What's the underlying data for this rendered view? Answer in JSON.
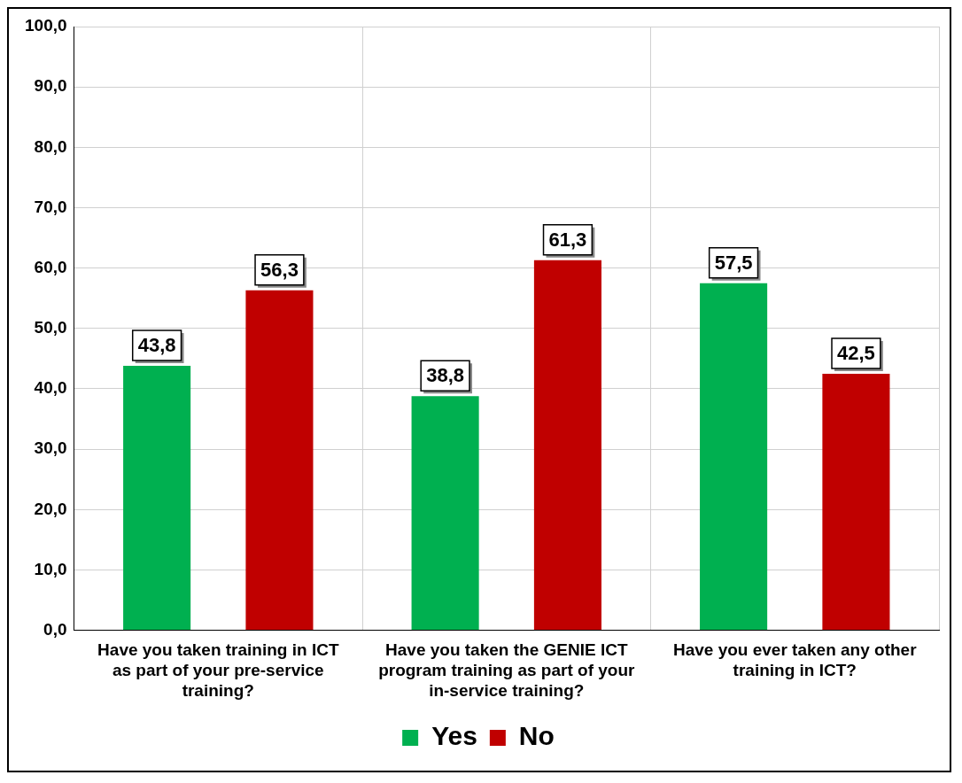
{
  "chart_data": {
    "type": "bar",
    "categories": [
      "Have you taken training in ICT as part of your pre-service training?",
      "Have you taken the GENIE ICT program training as part of your in-service training?",
      "Have you ever taken any other training in ICT?"
    ],
    "series": [
      {
        "name": "Yes",
        "color": "#00b050",
        "values": [
          43.8,
          38.8,
          57.5
        ],
        "value_labels": [
          "43,8",
          "38,8",
          "57,5"
        ]
      },
      {
        "name": "No",
        "color": "#c00000",
        "values": [
          56.3,
          61.3,
          42.5
        ],
        "value_labels": [
          "56,3",
          "61,3",
          "42,5"
        ]
      }
    ],
    "ylim": [
      0,
      100
    ],
    "yticks": [
      {
        "value": 0,
        "label": "0,0"
      },
      {
        "value": 10,
        "label": "10,0"
      },
      {
        "value": 20,
        "label": "20,0"
      },
      {
        "value": 30,
        "label": "30,0"
      },
      {
        "value": 40,
        "label": "40,0"
      },
      {
        "value": 50,
        "label": "50,0"
      },
      {
        "value": 60,
        "label": "60,0"
      },
      {
        "value": 70,
        "label": "70,0"
      },
      {
        "value": 80,
        "label": "80,0"
      },
      {
        "value": 90,
        "label": "90,0"
      },
      {
        "value": 100,
        "label": "100,0"
      }
    ],
    "grid": true,
    "legend": "bottom"
  }
}
